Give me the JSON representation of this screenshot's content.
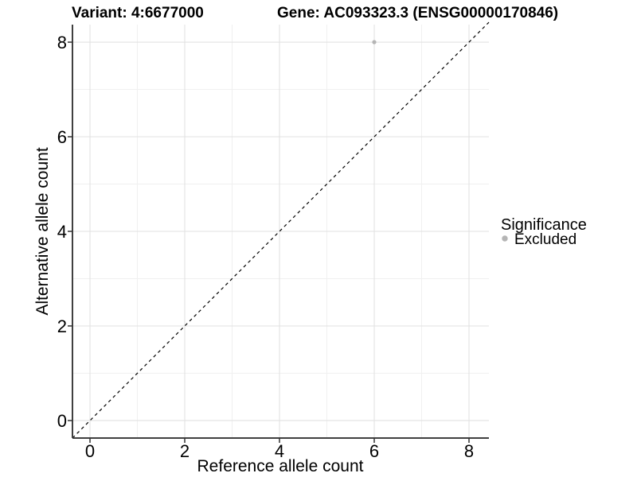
{
  "chart_data": {
    "type": "scatter",
    "title_left": "Variant: 4:6677000",
    "title_right": "Gene: AC093323.3 (ENSG00000170846)",
    "xlabel": "Reference allele count",
    "ylabel": "Alternative allele count",
    "xlim": [
      -0.37,
      8.42
    ],
    "ylim": [
      -0.37,
      8.37
    ],
    "xticks": [
      0,
      2,
      4,
      6,
      8
    ],
    "yticks": [
      0,
      2,
      4,
      6,
      8
    ],
    "minor_xticks": [
      1,
      3,
      5,
      7
    ],
    "minor_yticks": [
      1,
      3,
      5,
      7
    ],
    "grid": true,
    "points": [
      {
        "x": 6,
        "y": 8,
        "series": "Excluded"
      }
    ],
    "reference_line": {
      "slope": 1,
      "intercept": 0,
      "style": "dashed"
    },
    "legend": {
      "title": "Significance",
      "position": "right",
      "items": [
        {
          "label": "Excluded",
          "color": "#b5b5b5"
        }
      ]
    },
    "colors": {
      "point": "#b5b5b5",
      "grid_major": "#e2e2e2",
      "grid_minor": "#f0f0f0",
      "axis_line": "#404040",
      "tick_mark": "#333333",
      "text": "#000000",
      "reference_line": "#000000"
    }
  }
}
